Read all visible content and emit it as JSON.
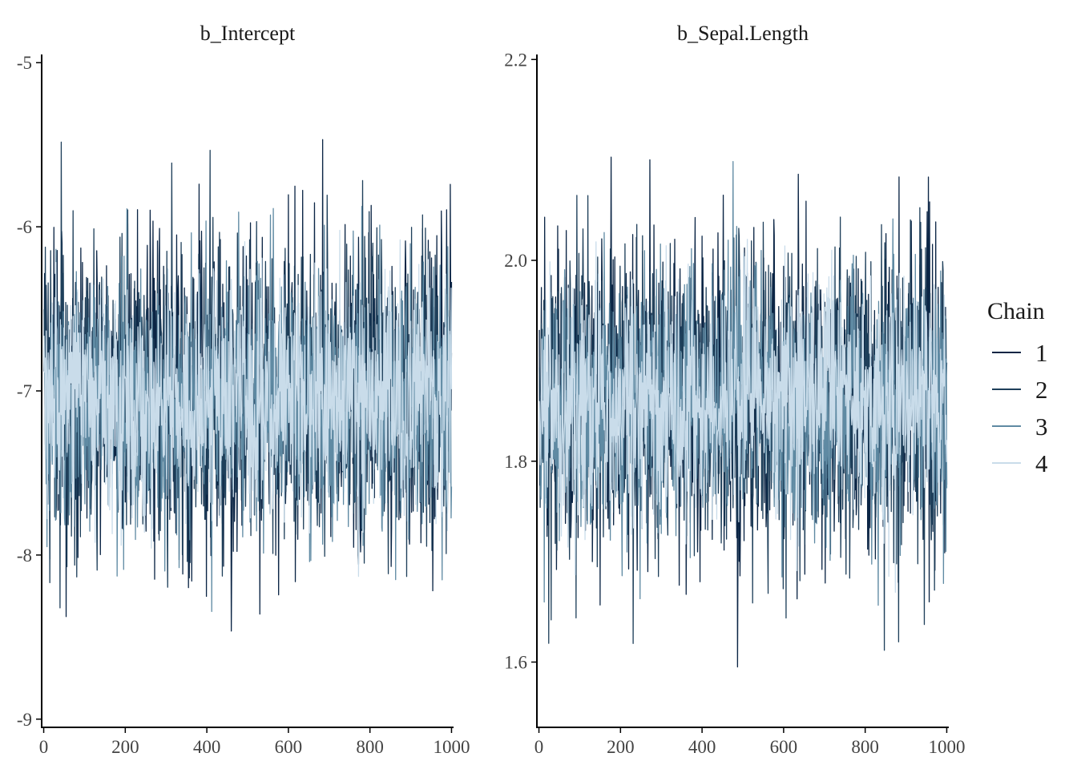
{
  "chart_data": [
    {
      "type": "line",
      "title": "b_Intercept",
      "xlabel": "",
      "ylabel": "",
      "xlim": [
        -5,
        1005
      ],
      "ylim": [
        -9.05,
        -4.95
      ],
      "x_ticks": [
        0,
        200,
        400,
        600,
        800,
        1000
      ],
      "y_ticks": [
        -9,
        -8,
        -7,
        -6,
        -5
      ],
      "x_tick_labels": [
        "0",
        "200",
        "400",
        "600",
        "800",
        "1000"
      ],
      "y_tick_labels": [
        "-9",
        "-8",
        "-7",
        "-6",
        "-5"
      ],
      "iterations": 1000,
      "series": [
        {
          "name": "1",
          "center": -7.05,
          "spread": 0.48,
          "min": -8.9,
          "max": -5.3
        },
        {
          "name": "2",
          "center": -7.05,
          "spread": 0.46,
          "min": -8.8,
          "max": -5.4
        },
        {
          "name": "3",
          "center": -7.05,
          "spread": 0.4,
          "min": -8.7,
          "max": -5.4
        },
        {
          "name": "4",
          "center": -7.05,
          "spread": 0.34,
          "min": -8.9,
          "max": -5.15
        }
      ],
      "grid": false
    },
    {
      "type": "line",
      "title": "b_Sepal.Length",
      "xlabel": "",
      "ylabel": "",
      "xlim": [
        -5,
        1005
      ],
      "ylim": [
        1.535,
        2.205
      ],
      "x_ticks": [
        0,
        200,
        400,
        600,
        800,
        1000
      ],
      "y_ticks": [
        1.6,
        1.8,
        2.0,
        2.2
      ],
      "x_tick_labels": [
        "0",
        "200",
        "400",
        "600",
        "800",
        "1000"
      ],
      "y_tick_labels": [
        "1.6",
        "1.8",
        "2.0",
        "2.2"
      ],
      "iterations": 1000,
      "series": [
        {
          "name": "1",
          "center": 1.86,
          "spread": 0.078,
          "min": 1.56,
          "max": 2.17
        },
        {
          "name": "2",
          "center": 1.86,
          "spread": 0.075,
          "min": 1.58,
          "max": 2.14
        },
        {
          "name": "3",
          "center": 1.86,
          "spread": 0.066,
          "min": 1.56,
          "max": 2.11
        },
        {
          "name": "4",
          "center": 1.86,
          "spread": 0.055,
          "min": 1.56,
          "max": 2.17
        }
      ],
      "grid": false
    }
  ],
  "legend": {
    "title": "Chain",
    "placement": "right",
    "items": [
      {
        "label": "1",
        "color": "#0b2545"
      },
      {
        "label": "2",
        "color": "#1e3f5a"
      },
      {
        "label": "3",
        "color": "#5f8aa3"
      },
      {
        "label": "4",
        "color": "#c9dcea"
      }
    ]
  }
}
